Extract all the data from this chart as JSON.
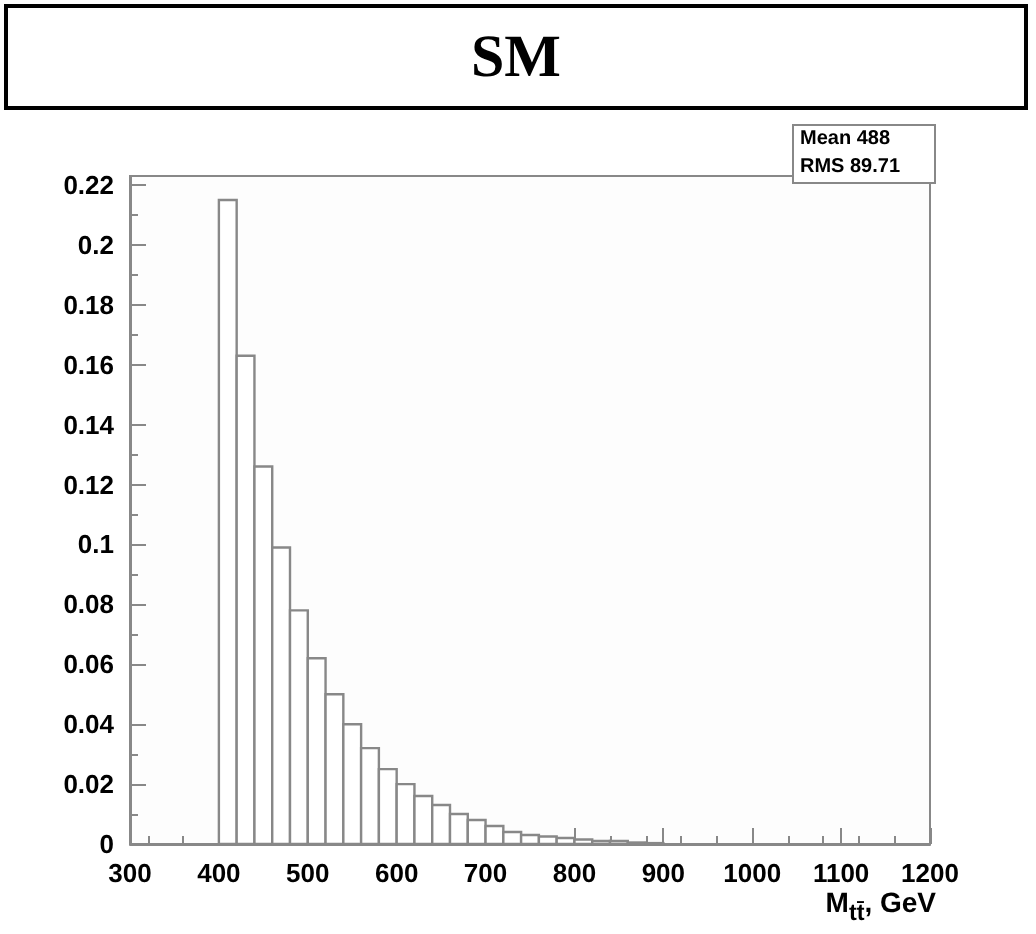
{
  "chart_data": {
    "type": "histogram",
    "title": "SM",
    "xlabel": "M$_{tt̄}$, GeV",
    "bins": [
      400,
      420,
      440,
      460,
      480,
      500,
      520,
      540,
      560,
      580,
      600,
      620,
      640,
      660,
      680,
      700,
      720,
      740,
      760,
      780,
      800,
      820,
      840,
      860,
      880,
      900
    ],
    "values": [
      0.215,
      0.163,
      0.126,
      0.099,
      0.078,
      0.062,
      0.05,
      0.04,
      0.032,
      0.025,
      0.02,
      0.016,
      0.013,
      0.01,
      0.008,
      0.006,
      0.004,
      0.003,
      0.0025,
      0.002,
      0.0015,
      0.001,
      0.001,
      0.0005,
      0.0003
    ],
    "color": "#888888",
    "xlim": [
      300,
      1200
    ],
    "xticks": [
      300,
      400,
      500,
      600,
      700,
      800,
      900,
      1000,
      1100,
      1200
    ],
    "ylim": [
      0,
      0.223
    ],
    "yticks": [
      0,
      0.02,
      0.04,
      0.06,
      0.08,
      0.1,
      0.12,
      0.14,
      0.16,
      0.18,
      0.2,
      0.22
    ],
    "grid": false,
    "annotations": [
      "Mean 488",
      "RMS 89.71"
    ]
  }
}
